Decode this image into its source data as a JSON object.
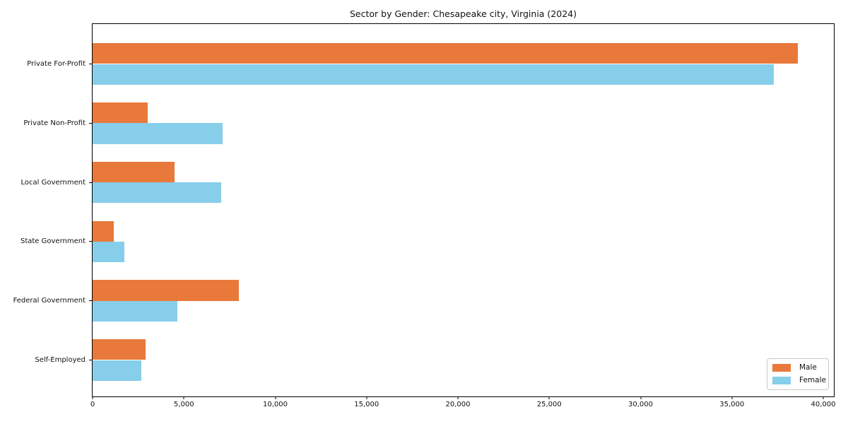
{
  "chart_data": {
    "type": "bar",
    "orientation": "horizontal",
    "title": "Sector by Gender: Chesapeake city, Virginia (2024)",
    "categories": [
      "Private For-Profit",
      "Private Non-Profit",
      "Local Government",
      "State Government",
      "Federal Government",
      "Self-Employed"
    ],
    "series": [
      {
        "name": "Male",
        "color": "#E8793A",
        "values": [
          38600,
          3000,
          4500,
          1150,
          8000,
          2900
        ]
      },
      {
        "name": "Female",
        "color": "#87CEEB",
        "values": [
          37300,
          7100,
          7050,
          1750,
          4650,
          2650
        ]
      }
    ],
    "xlabel": "",
    "ylabel": "",
    "xlim": [
      0,
      40580
    ],
    "xticks": [
      0,
      5000,
      10000,
      15000,
      20000,
      25000,
      30000,
      35000,
      40000
    ],
    "grid": false,
    "legend": {
      "position": "lower right",
      "entries": [
        "Male",
        "Female"
      ]
    }
  }
}
